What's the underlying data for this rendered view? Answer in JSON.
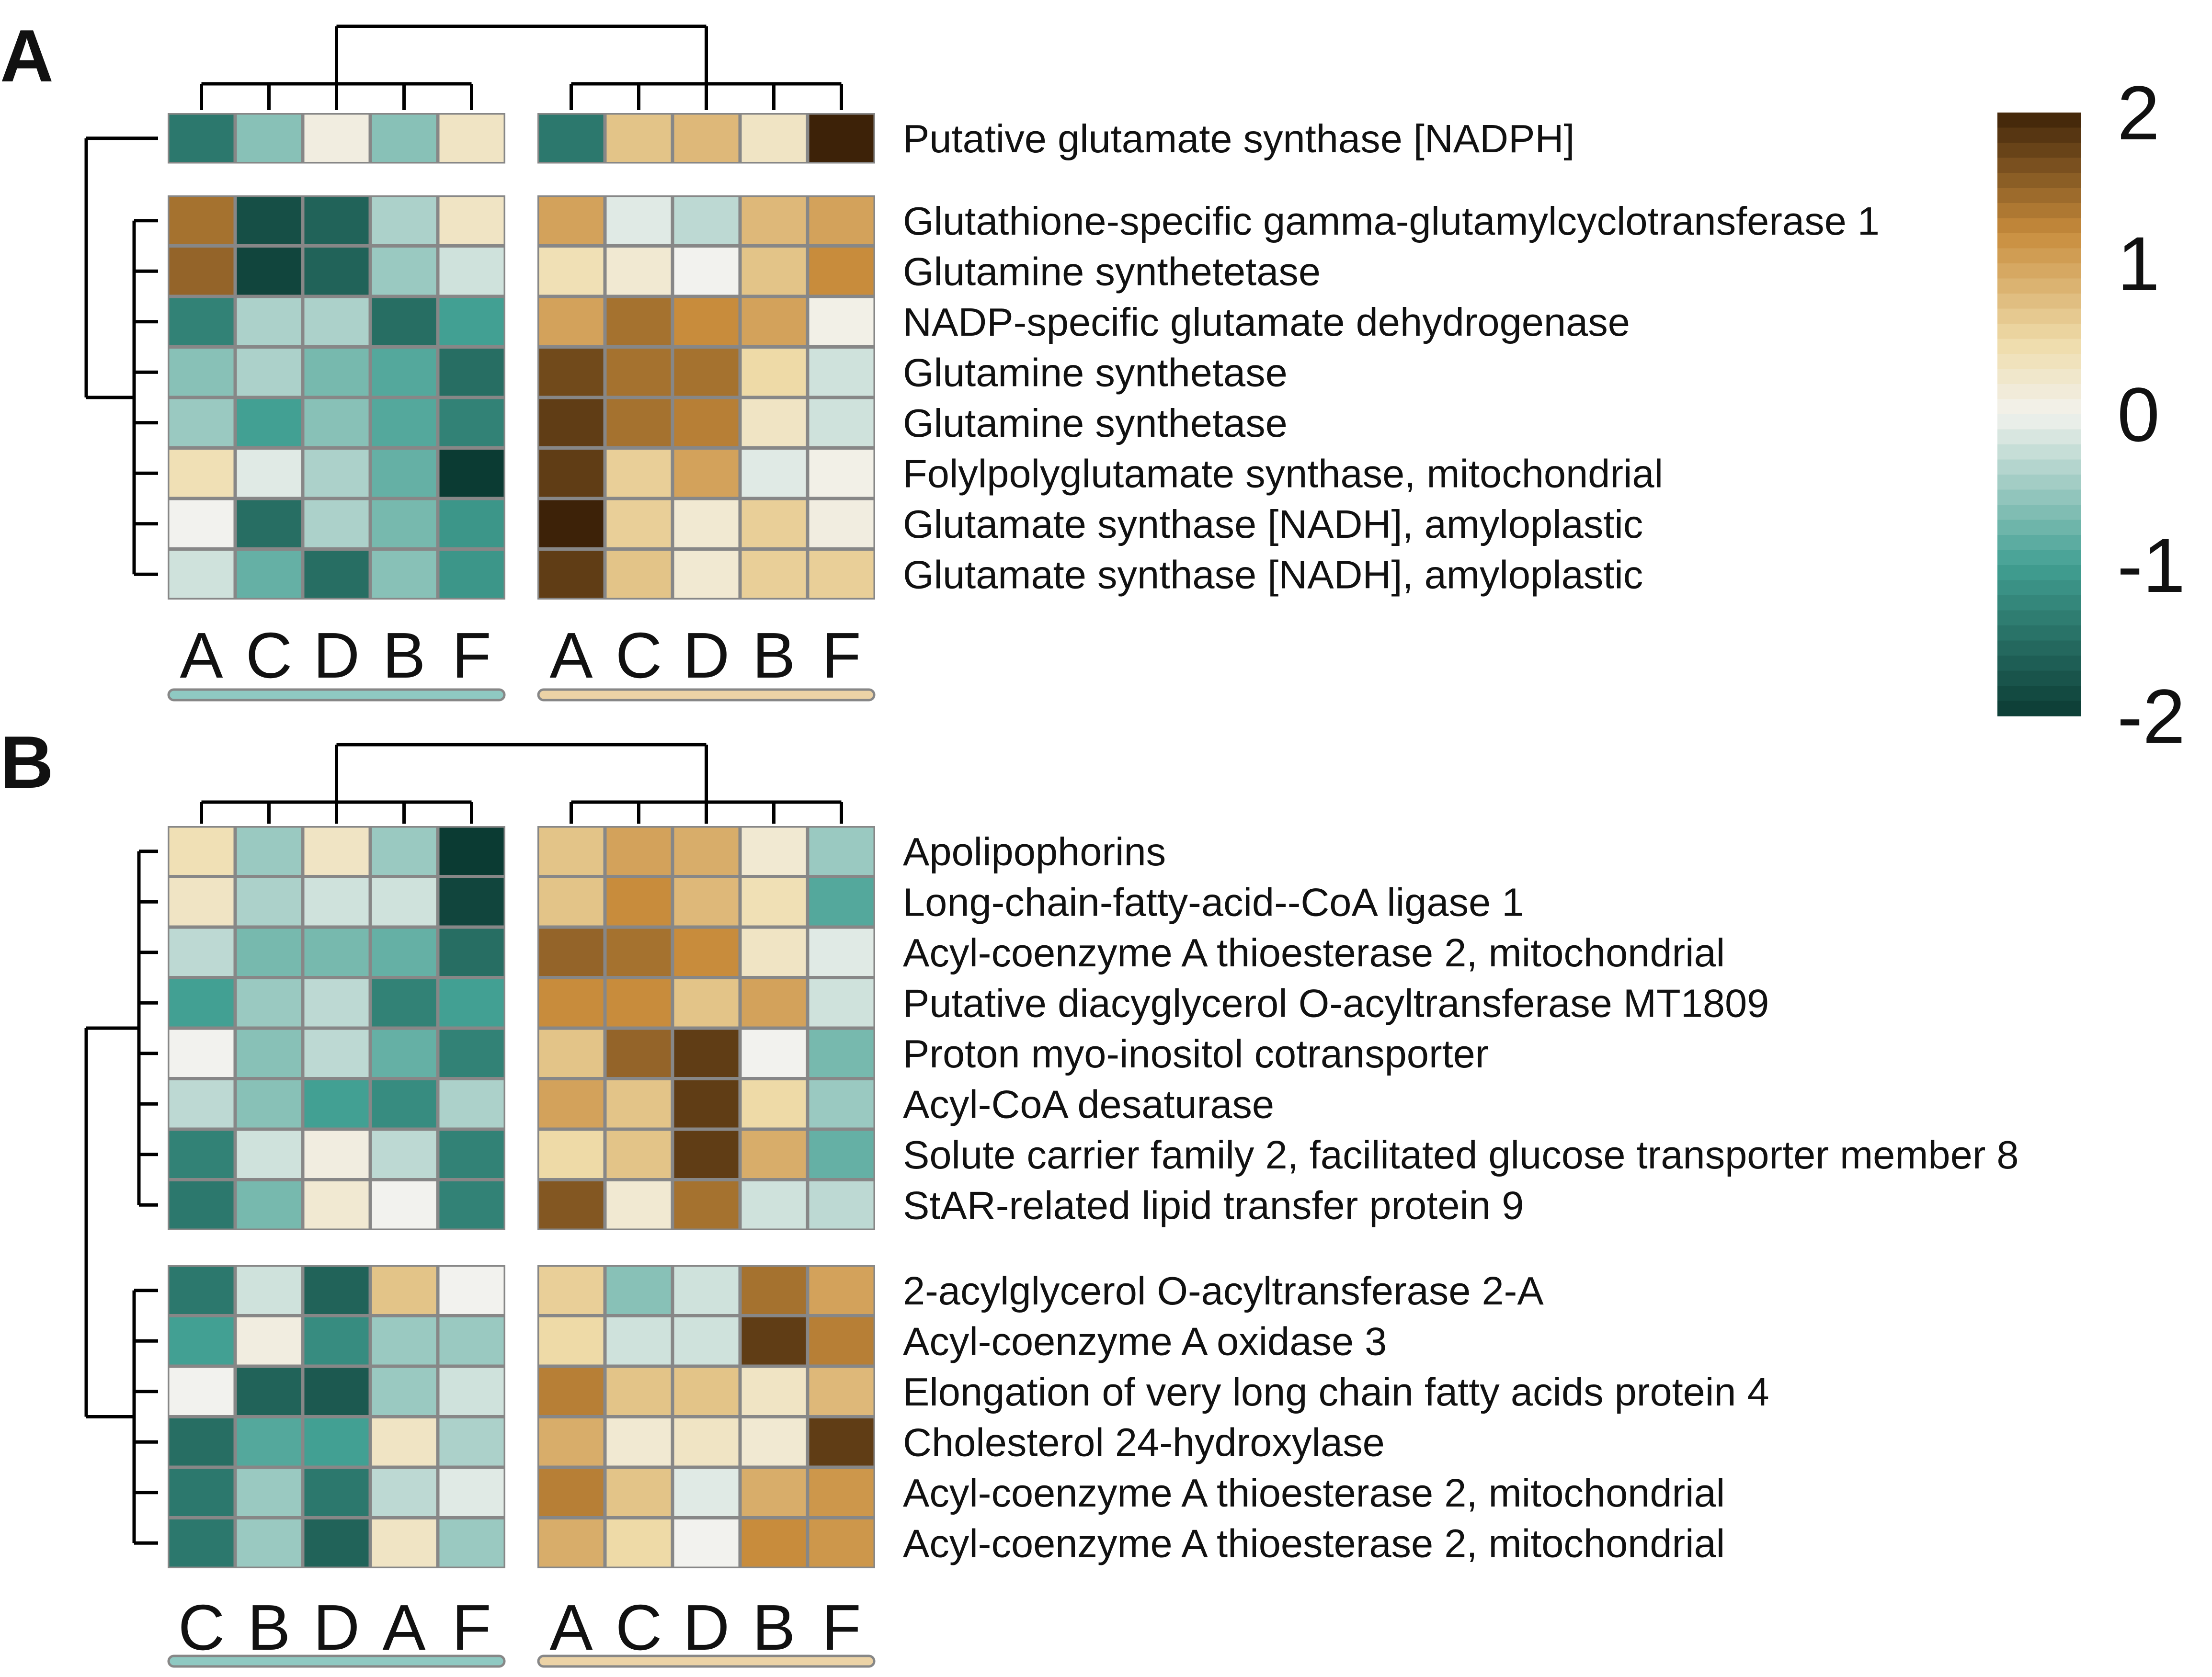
{
  "chart_data": {
    "type": "heatmap",
    "color_scale": {
      "range": [
        -2,
        2
      ],
      "ticks": [
        "2",
        "1",
        "0",
        "-1",
        "-2"
      ],
      "low_color": "#0b3b33",
      "mid_color": "#f2f2ee",
      "high_color": "#3d2208"
    },
    "group_bar_colors": [
      "#8fc9c2",
      "#ecd3a6"
    ],
    "panels": [
      {
        "letter": "A",
        "groups": [
          {
            "columns": [
              "A",
              "C",
              "D",
              "B",
              "F"
            ]
          },
          {
            "columns": [
              "A",
              "C",
              "D",
              "B",
              "F"
            ]
          }
        ],
        "blocks": [
          {
            "rows": [
              {
                "label": "Putative glutamate synthase [NADPH]",
                "values": [
                  -1.4,
                  -0.6,
                  0.1,
                  -0.6,
                  0.3,
                  -1.4,
                  0.7,
                  0.8,
                  0.3,
                  2.0
                ]
              }
            ]
          },
          {
            "rows": [
              {
                "label": "Glutathione-specific gamma-glutamylcyclotransferase 1",
                "values": [
                  1.4,
                  -1.8,
                  -1.6,
                  -0.4,
                  0.3,
                  1.0,
                  -0.1,
                  -0.3,
                  0.8,
                  1.0
                ]
              },
              {
                "label": "Glutamine synthetetase",
                "values": [
                  1.5,
                  -1.9,
                  -1.6,
                  -0.5,
                  -0.2,
                  0.4,
                  0.2,
                  0.0,
                  0.7,
                  1.2
                ]
              },
              {
                "label": "NADP-specific glutamate dehydrogenase",
                "values": [
                  -1.3,
                  -0.4,
                  -0.4,
                  -1.5,
                  -1.0,
                  1.0,
                  1.4,
                  1.2,
                  1.0,
                  0.05
                ]
              },
              {
                "label": "Glutamine synthetase",
                "values": [
                  -0.6,
                  -0.4,
                  -0.7,
                  -0.9,
                  -1.5,
                  1.7,
                  1.4,
                  1.4,
                  0.5,
                  -0.2
                ]
              },
              {
                "label": "Glutamine synthetase",
                "values": [
                  -0.5,
                  -1.0,
                  -0.6,
                  -0.9,
                  -1.3,
                  1.8,
                  1.4,
                  1.3,
                  0.3,
                  -0.2
                ]
              },
              {
                "label": "Folylpolyglutamate synthase, mitochondrial",
                "values": [
                  0.4,
                  -0.1,
                  -0.4,
                  -0.8,
                  -2.0,
                  1.8,
                  0.6,
                  1.0,
                  -0.1,
                  0.05
                ]
              },
              {
                "label": "Glutamate synthase [NADH], amyloplastic",
                "values": [
                  0.0,
                  -1.5,
                  -0.4,
                  -0.7,
                  -1.1,
                  2.0,
                  0.6,
                  0.2,
                  0.6,
                  0.1
                ]
              },
              {
                "label": "Glutamate synthase [NADH], amyloplastic",
                "values": [
                  -0.2,
                  -0.8,
                  -1.5,
                  -0.6,
                  -1.1,
                  1.8,
                  0.7,
                  0.2,
                  0.6,
                  0.6
                ]
              }
            ]
          }
        ]
      },
      {
        "letter": "B",
        "groups": [
          {
            "columns": [
              "C",
              "B",
              "D",
              "A",
              "F"
            ]
          },
          {
            "columns": [
              "A",
              "C",
              "D",
              "B",
              "F"
            ]
          }
        ],
        "blocks": [
          {
            "rows": [
              {
                "label": "Apolipophorins",
                "values": [
                  0.4,
                  -0.5,
                  0.3,
                  -0.5,
                  -2.0,
                  0.7,
                  1.0,
                  0.9,
                  0.2,
                  -0.5
                ]
              },
              {
                "label": "Long-chain-fatty-acid--CoA ligase 1",
                "values": [
                  0.3,
                  -0.4,
                  -0.2,
                  -0.2,
                  -1.9,
                  0.7,
                  1.2,
                  0.8,
                  0.4,
                  -0.9
                ]
              },
              {
                "label": "Acyl-coenzyme A thioesterase 2, mitochondrial",
                "values": [
                  -0.3,
                  -0.7,
                  -0.7,
                  -0.8,
                  -1.5,
                  1.5,
                  1.4,
                  1.2,
                  0.3,
                  -0.1
                ]
              },
              {
                "label": "Putative diacyglycerol O-acyltransferase MT1809",
                "values": [
                  -1.0,
                  -0.5,
                  -0.3,
                  -1.3,
                  -1.0,
                  1.2,
                  1.2,
                  0.7,
                  1.0,
                  -0.2
                ]
              },
              {
                "label": "Proton myo-inositol cotransporter",
                "values": [
                  0.0,
                  -0.6,
                  -0.3,
                  -0.8,
                  -1.3,
                  0.7,
                  1.5,
                  1.8,
                  0.0,
                  -0.7
                ]
              },
              {
                "label": "Acyl-CoA desaturase",
                "values": [
                  -0.3,
                  -0.6,
                  -1.0,
                  -1.2,
                  -0.4,
                  1.0,
                  0.7,
                  1.8,
                  0.5,
                  -0.5
                ]
              },
              {
                "label": "Solute carrier family 2, facilitated glucose transporter member 8",
                "values": [
                  -1.3,
                  -0.2,
                  0.1,
                  -0.3,
                  -1.3,
                  0.5,
                  0.7,
                  1.8,
                  0.9,
                  -0.8
                ]
              },
              {
                "label": "StAR-related lipid transfer protein 9",
                "values": [
                  -1.4,
                  -0.7,
                  0.2,
                  0.0,
                  -1.3,
                  1.6,
                  0.2,
                  1.4,
                  -0.2,
                  -0.3
                ]
              }
            ]
          },
          {
            "rows": [
              {
                "label": "2-acylglycerol O-acyltransferase 2-A",
                "values": [
                  -1.4,
                  -0.2,
                  -1.6,
                  0.7,
                  0.0,
                  0.6,
                  -0.6,
                  -0.2,
                  1.4,
                  1.0
                ]
              },
              {
                "label": "Acyl-coenzyme A oxidase 3",
                "values": [
                  -1.0,
                  0.1,
                  -1.2,
                  -0.5,
                  -0.5,
                  0.5,
                  -0.2,
                  -0.2,
                  1.8,
                  1.3
                ]
              },
              {
                "label": "Elongation of very long chain fatty acids protein 4",
                "values": [
                  0.0,
                  -1.6,
                  -1.7,
                  -0.5,
                  -0.2,
                  1.3,
                  0.7,
                  0.7,
                  0.3,
                  0.8
                ]
              },
              {
                "label": "Cholesterol 24-hydroxylase",
                "values": [
                  -1.5,
                  -0.9,
                  -1.0,
                  0.3,
                  -0.4,
                  0.9,
                  0.2,
                  0.3,
                  0.2,
                  1.8
                ]
              },
              {
                "label": "Acyl-coenzyme A thioesterase 2, mitochondrial",
                "values": [
                  -1.4,
                  -0.5,
                  -1.4,
                  -0.3,
                  -0.1,
                  1.3,
                  0.7,
                  -0.1,
                  0.9,
                  1.1
                ]
              },
              {
                "label": "Acyl-coenzyme A thioesterase 2, mitochondrial",
                "values": [
                  -1.4,
                  -0.5,
                  -1.6,
                  0.3,
                  -0.5,
                  0.9,
                  0.5,
                  0.0,
                  1.2,
                  1.1
                ]
              }
            ]
          }
        ]
      }
    ]
  }
}
